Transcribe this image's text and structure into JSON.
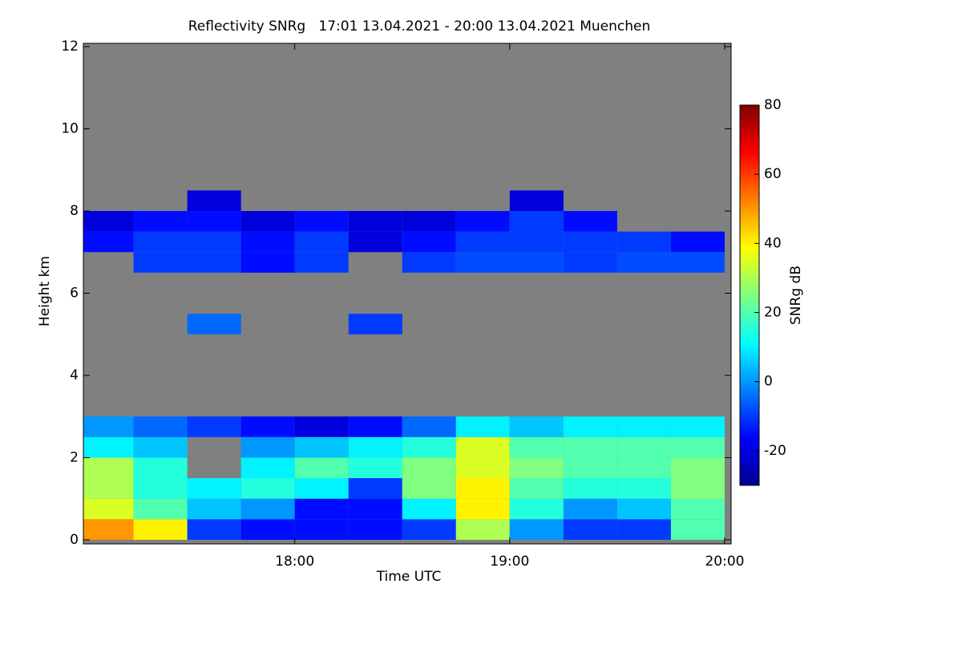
{
  "chart_data": {
    "type": "heatmap",
    "title": "Reflectivity SNRg   17:01 13.04.2021 - 20:00 13.04.2021 Muenchen",
    "x_label": "Time UTC",
    "y_label": "Height km",
    "colorbar_label": "SNRg dB",
    "x_bins": [
      17.0167,
      17.25,
      17.5,
      17.75,
      18.0,
      18.25,
      18.5,
      18.75,
      19.0,
      19.25,
      19.5,
      19.75,
      20.0
    ],
    "y_bins": [
      0,
      0.5,
      1,
      1.5,
      2,
      2.5,
      3,
      3.5,
      4,
      4.5,
      5,
      5.5,
      6,
      6.5,
      7,
      7.5,
      8,
      8.5,
      9
    ],
    "z": [
      [
        50,
        40,
        -10,
        -15,
        -15,
        -15,
        -10,
        30,
        0,
        -10,
        -10,
        20
      ],
      [
        35,
        20,
        5,
        0,
        -15,
        -15,
        10,
        40,
        15,
        0,
        5,
        20
      ],
      [
        30,
        15,
        10,
        15,
        10,
        -10,
        25,
        40,
        20,
        15,
        15,
        25
      ],
      [
        30,
        15,
        null,
        10,
        20,
        15,
        25,
        35,
        25,
        20,
        20,
        25
      ],
      [
        10,
        5,
        null,
        0,
        5,
        10,
        15,
        35,
        20,
        20,
        20,
        20
      ],
      [
        0,
        -5,
        -10,
        -15,
        -20,
        -15,
        -5,
        10,
        5,
        10,
        10,
        10
      ],
      [
        null,
        null,
        null,
        null,
        null,
        null,
        null,
        null,
        null,
        null,
        null,
        null
      ],
      [
        null,
        null,
        null,
        null,
        null,
        null,
        null,
        null,
        null,
        null,
        null,
        null
      ],
      [
        null,
        null,
        null,
        null,
        null,
        null,
        null,
        null,
        null,
        null,
        null,
        null
      ],
      [
        null,
        null,
        null,
        null,
        null,
        null,
        null,
        null,
        null,
        null,
        null,
        null
      ],
      [
        null,
        null,
        -5,
        null,
        null,
        -10,
        null,
        null,
        null,
        null,
        null,
        null
      ],
      [
        null,
        null,
        null,
        null,
        null,
        null,
        null,
        null,
        null,
        null,
        null,
        null
      ],
      [
        null,
        null,
        null,
        null,
        null,
        null,
        null,
        null,
        null,
        null,
        null,
        null
      ],
      [
        null,
        -10,
        -10,
        -15,
        -10,
        null,
        -10,
        -8,
        -8,
        -10,
        -8,
        -8
      ],
      [
        -15,
        -10,
        -10,
        -15,
        -10,
        -20,
        -15,
        -10,
        -10,
        -10,
        -10,
        -15
      ],
      [
        -20,
        -15,
        -15,
        -20,
        -15,
        -20,
        -20,
        -15,
        -10,
        -15,
        null,
        null
      ],
      [
        null,
        null,
        -20,
        null,
        null,
        null,
        null,
        null,
        -20,
        null,
        null,
        null
      ],
      [
        null,
        null,
        null,
        null,
        null,
        null,
        null,
        null,
        null,
        null,
        null,
        null
      ]
    ],
    "xlim": [
      17.0167,
      20.03
    ],
    "xticks": [
      {
        "value": 18,
        "label": "18:00"
      },
      {
        "value": 19,
        "label": "19:00"
      },
      {
        "value": 20,
        "label": "20:00"
      }
    ],
    "ylim": [
      -0.1,
      12.08
    ],
    "yticks": [
      0,
      2,
      4,
      6,
      8,
      10,
      12
    ],
    "clim": [
      -30,
      80
    ],
    "cticks": [
      -20,
      0,
      20,
      40,
      60,
      80
    ],
    "background": "#808080",
    "colormap": "jet"
  }
}
